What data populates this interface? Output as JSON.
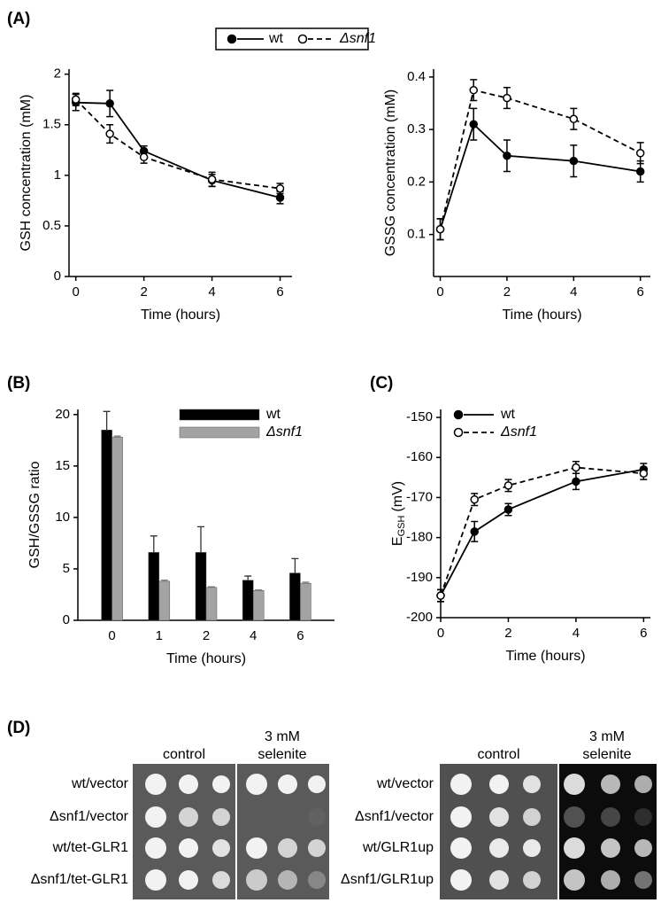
{
  "chart_data": [
    {
      "type": "line",
      "panel": "(A)",
      "x_label": "Time (hours)",
      "y_label": "GSH concentration (mM)",
      "x": [
        0,
        1,
        2,
        4,
        6
      ],
      "series": [
        {
          "name": "wt",
          "color": "#000000",
          "marker": "filled",
          "dash": false,
          "values": [
            1.72,
            1.71,
            1.24,
            0.95,
            0.78
          ],
          "errors": [
            0.08,
            0.13,
            0.05,
            0.06,
            0.06
          ]
        },
        {
          "name": "Δsnf1",
          "color": "#000000",
          "marker": "open",
          "dash": true,
          "values": [
            1.75,
            1.41,
            1.18,
            0.96,
            0.87
          ],
          "errors": [
            0.06,
            0.09,
            0.06,
            0.07,
            0.05
          ]
        }
      ],
      "xlim": [
        -0.2,
        6.35
      ],
      "ylim": [
        0,
        2.05
      ],
      "xticks": [
        0,
        2,
        4,
        6
      ],
      "yticks": [
        0,
        0.5,
        1,
        1.5,
        2
      ]
    },
    {
      "type": "line",
      "x_label": "Time (hours)",
      "y_label": "GSSG concentration (mM)",
      "x": [
        0,
        1,
        2,
        4,
        6
      ],
      "series": [
        {
          "name": "wt",
          "color": "#000000",
          "marker": "filled",
          "dash": false,
          "values": [
            0.11,
            0.31,
            0.25,
            0.24,
            0.22
          ],
          "errors": [
            0.02,
            0.03,
            0.03,
            0.03,
            0.02
          ]
        },
        {
          "name": "Δsnf1",
          "color": "#000000",
          "marker": "open",
          "dash": true,
          "values": [
            0.11,
            0.375,
            0.36,
            0.32,
            0.255
          ],
          "errors": [
            0.02,
            0.02,
            0.02,
            0.02,
            0.02
          ]
        }
      ],
      "xlim": [
        -0.2,
        6.3
      ],
      "ylim": [
        0.02,
        0.415
      ],
      "xticks": [
        0,
        2,
        4,
        6
      ],
      "yticks": [
        0.1,
        0.2,
        0.3,
        0.4
      ]
    },
    {
      "type": "bar",
      "panel": "(B)",
      "x_label": "Time (hours)",
      "y_label": "GSH/GSSG ratio",
      "categories": [
        "0",
        "1",
        "2",
        "4",
        "6"
      ],
      "series": [
        {
          "name": "wt",
          "color": "#000000",
          "values": [
            18.5,
            6.6,
            6.6,
            3.9,
            4.6
          ],
          "errors": [
            1.8,
            1.6,
            2.5,
            0.4,
            1.4
          ]
        },
        {
          "name": "Δsnf1",
          "color": "#a3a3a3",
          "values": [
            17.8,
            3.8,
            3.2,
            2.9,
            3.6
          ],
          "errors": [
            0.1,
            0.1,
            0.05,
            0.05,
            0.1
          ]
        }
      ],
      "ylim": [
        0,
        20.5
      ],
      "yticks": [
        0,
        5,
        10,
        15,
        20
      ]
    },
    {
      "type": "line",
      "panel": "(C)",
      "x_label": "Time (hours)",
      "y_label": "E",
      "y_label_sub": "GSH",
      "y_label_unit": "(mV)",
      "x": [
        0,
        1,
        2,
        4,
        6
      ],
      "series": [
        {
          "name": "wt",
          "color": "#000000",
          "marker": "filled",
          "dash": false,
          "values": [
            -194.5,
            -178.5,
            -173,
            -166,
            -163
          ],
          "errors": [
            1.5,
            2.5,
            1.5,
            2,
            1.5
          ]
        },
        {
          "name": "Δsnf1",
          "color": "#000000",
          "marker": "open",
          "dash": true,
          "values": [
            -194.5,
            -170.5,
            -167,
            -162.5,
            -164
          ],
          "errors": [
            1.5,
            1.5,
            1.5,
            1.5,
            1.5
          ]
        }
      ],
      "xlim": [
        0,
        6.2
      ],
      "ylim": [
        -200,
        -148
      ],
      "xticks": [
        0,
        2,
        4,
        6
      ],
      "yticks": [
        -200,
        -190,
        -180,
        -170,
        -160,
        -150
      ]
    }
  ],
  "spot_assay": {
    "panel": "(D)",
    "left": {
      "conditions": [
        "control",
        "3 mM",
        "selenite"
      ],
      "rows": [
        "wt/vector",
        "Δsnf1/vector",
        "wt/tet-GLR1",
        "Δsnf1/tet-GLR1"
      ]
    },
    "right": {
      "conditions": [
        "control",
        "3 mM",
        "selenite"
      ],
      "rows": [
        "wt/vector",
        "Δsnf1/vector",
        "wt/GLR1up",
        "Δsnf1/GLR1up"
      ]
    }
  }
}
